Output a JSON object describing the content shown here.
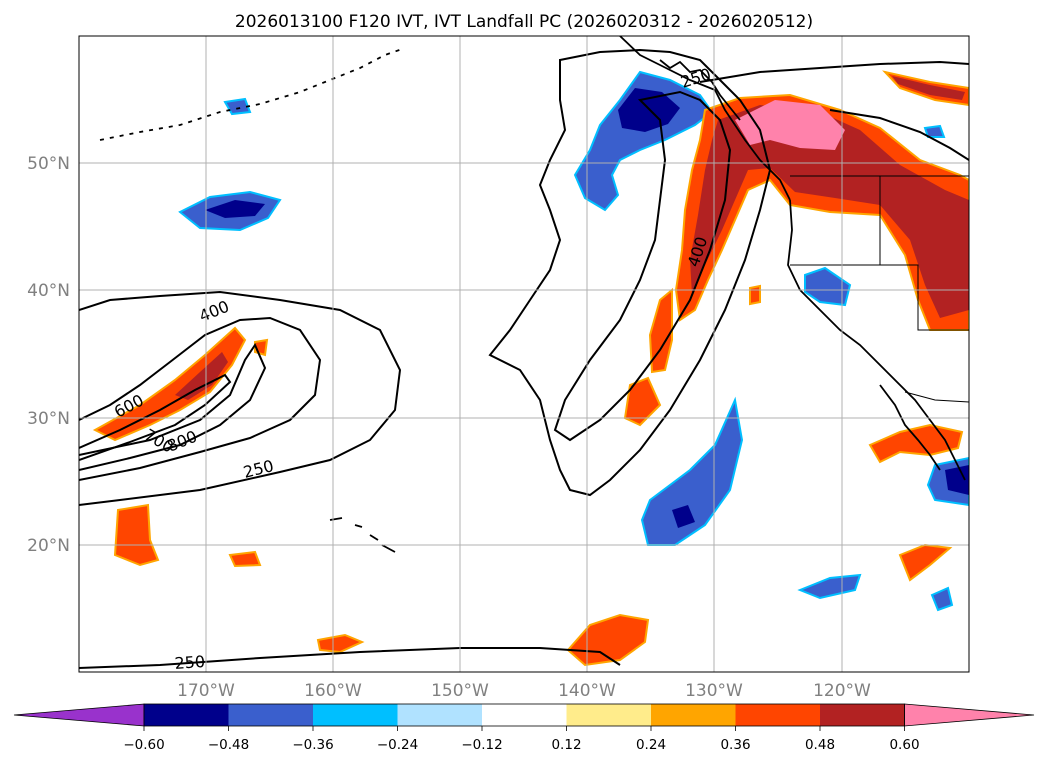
{
  "title": "2026013100 F120 IVT, IVT Landfall PC (2026020312 - 2026020512)",
  "lat_labels": [
    "50°N",
    "40°N",
    "30°N",
    "20°N"
  ],
  "lon_labels": [
    "170°W",
    "160°W",
    "150°W",
    "140°W",
    "130°W",
    "120°W"
  ],
  "contour_labels": [
    "400",
    "600",
    "700",
    "800",
    "250",
    "250",
    "250",
    "400"
  ],
  "colorbar": {
    "ticks": [
      "−0.60",
      "−0.48",
      "−0.36",
      "−0.24",
      "−0.12",
      "0.12",
      "0.24",
      "0.36",
      "0.48",
      "0.60"
    ],
    "colors": [
      "#9932cc",
      "#00008b",
      "#3a5fcd",
      "#00bfff",
      "#b0e2ff",
      "#ffffff",
      "#ffec8b",
      "#ffa500",
      "#ff4500",
      "#b22222",
      "#ff82ab"
    ]
  }
}
